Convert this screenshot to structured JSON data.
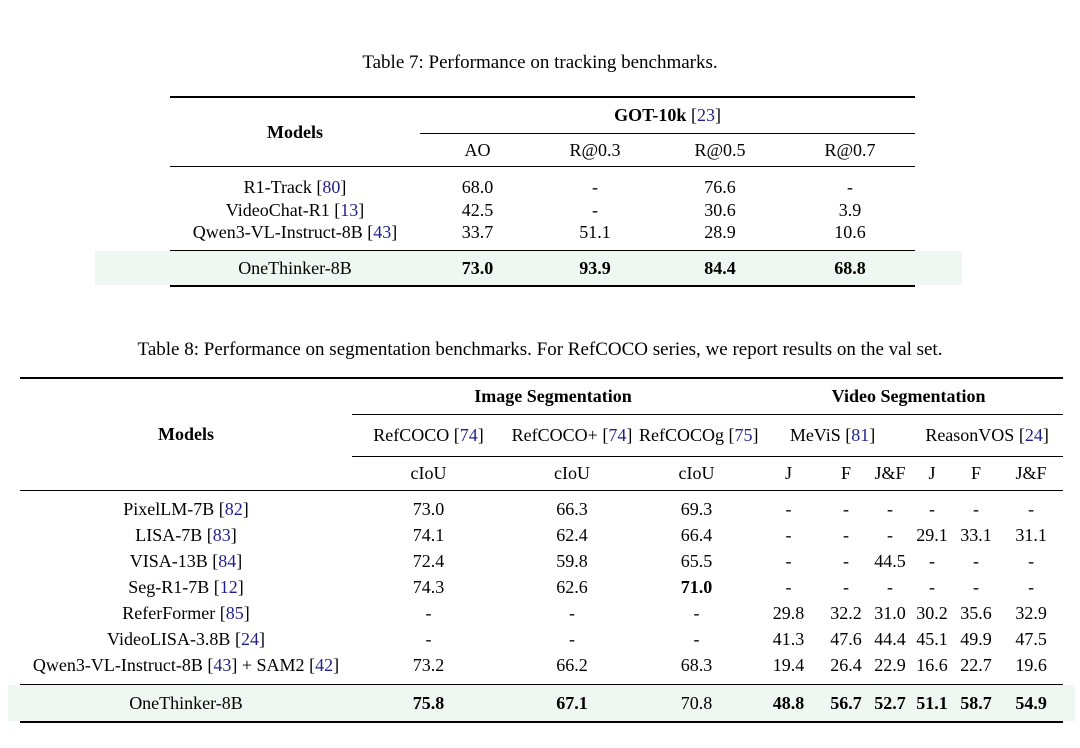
{
  "colors": {
    "citation": "#1f1f8f",
    "highlight_bg": "#eef7f1",
    "rule": "#000000",
    "text": "#000000"
  },
  "table7": {
    "caption": "Table 7: Performance on tracking benchmarks.",
    "models_header": "Models",
    "group_header": [
      {
        "text": "GOT-10k ",
        "style": "bold"
      },
      {
        "text": "[",
        "style": "plain"
      },
      {
        "text": "23",
        "style": "cite"
      },
      {
        "text": "]",
        "style": "plain"
      }
    ],
    "metric_headers": [
      "AO",
      "R@0.3",
      "R@0.5",
      "R@0.7"
    ],
    "rows": [
      {
        "model": [
          {
            "text": "R1-Track ",
            "style": "plain"
          },
          {
            "text": "[",
            "style": "plain"
          },
          {
            "text": "80",
            "style": "cite"
          },
          {
            "text": "]",
            "style": "plain"
          }
        ],
        "values": [
          "68.0",
          "-",
          "76.6",
          "-"
        ]
      },
      {
        "model": [
          {
            "text": "VideoChat-R1 ",
            "style": "plain"
          },
          {
            "text": "[",
            "style": "plain"
          },
          {
            "text": "13",
            "style": "cite"
          },
          {
            "text": "]",
            "style": "plain"
          }
        ],
        "values": [
          "42.5",
          "-",
          "30.6",
          "3.9"
        ]
      },
      {
        "model": [
          {
            "text": "Qwen3-VL-Instruct-8B ",
            "style": "plain"
          },
          {
            "text": "[",
            "style": "plain"
          },
          {
            "text": "43",
            "style": "cite"
          },
          {
            "text": "]",
            "style": "plain"
          }
        ],
        "values": [
          "33.7",
          "51.1",
          "28.9",
          "10.6"
        ]
      }
    ],
    "best_row": {
      "model": [
        {
          "text": "OneThinker-8B",
          "style": "plain"
        }
      ],
      "values": [
        "73.0",
        "93.9",
        "84.4",
        "68.8"
      ]
    }
  },
  "table8": {
    "caption": "Table 8: Performance on segmentation benchmarks. For RefCOCO series, we report results on the val set.",
    "models_header": "Models",
    "group_headers": {
      "image": [
        {
          "text": "Image Segmentation",
          "style": "bold"
        }
      ],
      "video": [
        {
          "text": "Video Segmentation",
          "style": "bold"
        }
      ]
    },
    "benchmark_headers": {
      "refcoco": [
        {
          "text": "RefCOCO ",
          "style": "plain"
        },
        {
          "text": "[",
          "style": "plain"
        },
        {
          "text": "74",
          "style": "cite"
        },
        {
          "text": "]",
          "style": "plain"
        }
      ],
      "refcocoplus": [
        {
          "text": "RefCOCO+ ",
          "style": "plain"
        },
        {
          "text": "[",
          "style": "plain"
        },
        {
          "text": "74",
          "style": "cite"
        },
        {
          "text": "]",
          "style": "plain"
        }
      ],
      "refcocog": [
        {
          "text": "RefCOCOg ",
          "style": "plain"
        },
        {
          "text": "[",
          "style": "plain"
        },
        {
          "text": "75",
          "style": "cite"
        },
        {
          "text": "]",
          "style": "plain"
        }
      ],
      "mevis": [
        {
          "text": "MeViS ",
          "style": "plain"
        },
        {
          "text": "[",
          "style": "plain"
        },
        {
          "text": "81",
          "style": "cite"
        },
        {
          "text": "]",
          "style": "plain"
        }
      ],
      "reasonvos": [
        {
          "text": "ReasonVOS ",
          "style": "plain"
        },
        {
          "text": "[",
          "style": "plain"
        },
        {
          "text": "24",
          "style": "cite"
        },
        {
          "text": "]",
          "style": "plain"
        }
      ]
    },
    "metric_headers": [
      "cIoU",
      "cIoU",
      "cIoU",
      "J",
      "F",
      "J&F",
      "J",
      "F",
      "J&F"
    ],
    "rows": [
      {
        "model": [
          {
            "text": "PixelLM-7B ",
            "style": "plain"
          },
          {
            "text": "[",
            "style": "plain"
          },
          {
            "text": "82",
            "style": "cite"
          },
          {
            "text": "]",
            "style": "plain"
          }
        ],
        "values": [
          "73.0",
          "66.3",
          "69.3",
          "-",
          "-",
          "-",
          "-",
          "-",
          "-"
        ]
      },
      {
        "model": [
          {
            "text": "LISA-7B ",
            "style": "plain"
          },
          {
            "text": "[",
            "style": "plain"
          },
          {
            "text": "83",
            "style": "cite"
          },
          {
            "text": "]",
            "style": "plain"
          }
        ],
        "values": [
          "74.1",
          "62.4",
          "66.4",
          "-",
          "-",
          "-",
          "29.1",
          "33.1",
          "31.1"
        ]
      },
      {
        "model": [
          {
            "text": "VISA-13B ",
            "style": "plain"
          },
          {
            "text": "[",
            "style": "plain"
          },
          {
            "text": "84",
            "style": "cite"
          },
          {
            "text": "]",
            "style": "plain"
          }
        ],
        "values": [
          "72.4",
          "59.8",
          "65.5",
          "-",
          "-",
          "44.5",
          "-",
          "-",
          "-"
        ]
      },
      {
        "model": [
          {
            "text": "Seg-R1-7B ",
            "style": "plain"
          },
          {
            "text": "[",
            "style": "plain"
          },
          {
            "text": "12",
            "style": "cite"
          },
          {
            "text": "]",
            "style": "plain"
          }
        ],
        "values": [
          "74.3",
          "62.6",
          "71.0",
          "-",
          "-",
          "-",
          "-",
          "-",
          "-"
        ]
      },
      {
        "model": [
          {
            "text": "ReferFormer ",
            "style": "plain"
          },
          {
            "text": "[",
            "style": "plain"
          },
          {
            "text": "85",
            "style": "cite"
          },
          {
            "text": "]",
            "style": "plain"
          }
        ],
        "values": [
          "-",
          "-",
          "-",
          "29.8",
          "32.2",
          "31.0",
          "30.2",
          "35.6",
          "32.9"
        ]
      },
      {
        "model": [
          {
            "text": "VideoLISA-3.8B ",
            "style": "plain"
          },
          {
            "text": "[",
            "style": "plain"
          },
          {
            "text": "24",
            "style": "cite"
          },
          {
            "text": "]",
            "style": "plain"
          }
        ],
        "values": [
          "-",
          "-",
          "-",
          "41.3",
          "47.6",
          "44.4",
          "45.1",
          "49.9",
          "47.5"
        ]
      },
      {
        "model": [
          {
            "text": "Qwen3-VL-Instruct-8B ",
            "style": "plain"
          },
          {
            "text": "[",
            "style": "plain"
          },
          {
            "text": "43",
            "style": "cite"
          },
          {
            "text": "]",
            "style": "plain"
          },
          {
            "text": " + SAM2 ",
            "style": "plain"
          },
          {
            "text": "[",
            "style": "plain"
          },
          {
            "text": "42",
            "style": "cite"
          },
          {
            "text": "]",
            "style": "plain"
          }
        ],
        "values": [
          "73.2",
          "66.2",
          "68.3",
          "19.4",
          "26.4",
          "22.9",
          "16.6",
          "22.7",
          "19.6"
        ]
      }
    ],
    "best_row": {
      "model": [
        {
          "text": "OneThinker-8B",
          "style": "plain"
        }
      ],
      "values": [
        "75.8",
        "67.1",
        "70.8",
        "48.8",
        "56.7",
        "52.7",
        "51.1",
        "58.7",
        "54.9"
      ]
    }
  }
}
